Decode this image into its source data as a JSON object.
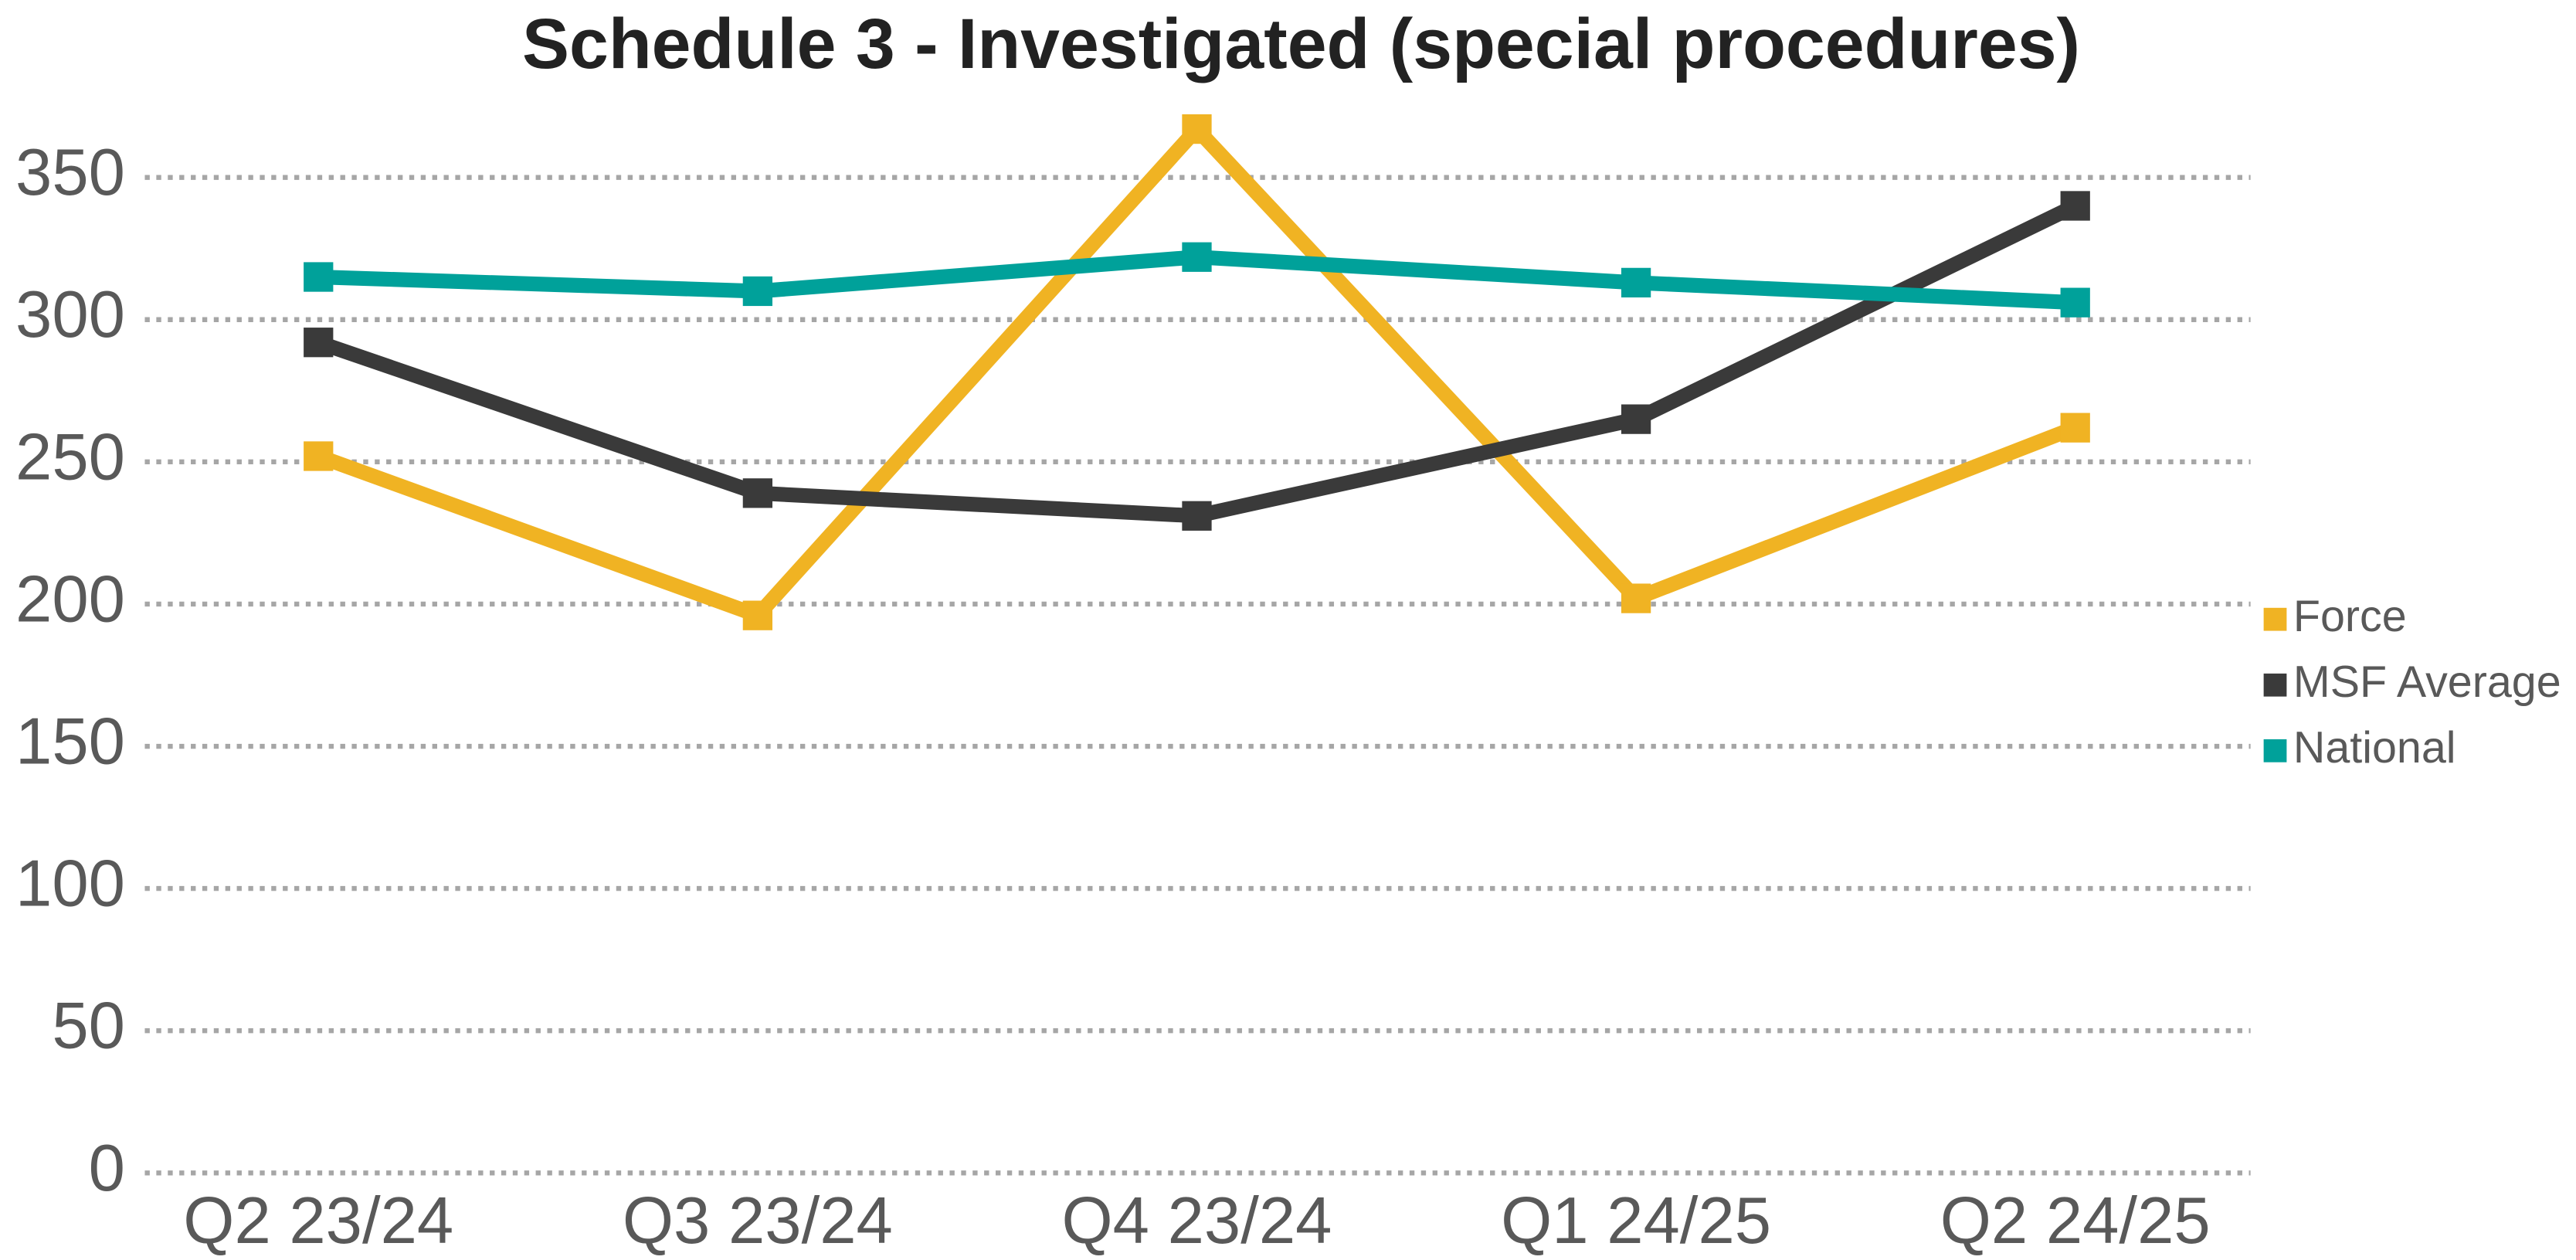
{
  "chart_data": {
    "type": "line",
    "title": "Schedule 3 - Investigated (special procedures)",
    "categories": [
      "Q2 23/24",
      "Q3 23/24",
      "Q4 23/24",
      "Q1 24/25",
      "Q2 24/25"
    ],
    "series": [
      {
        "name": "Force",
        "color": "#f0b323",
        "values": [
          252,
          196,
          367,
          202,
          262
        ]
      },
      {
        "name": "MSF Average",
        "color": "#3a3a3a",
        "values": [
          292,
          239,
          231,
          265,
          340
        ]
      },
      {
        "name": "National",
        "color": "#00a19a",
        "values": [
          315,
          310,
          322,
          313,
          306
        ]
      }
    ],
    "ylim": [
      0,
      350
    ],
    "yticks": [
      0,
      50,
      100,
      150,
      200,
      250,
      300,
      350
    ],
    "grid": true,
    "legend": "right"
  }
}
